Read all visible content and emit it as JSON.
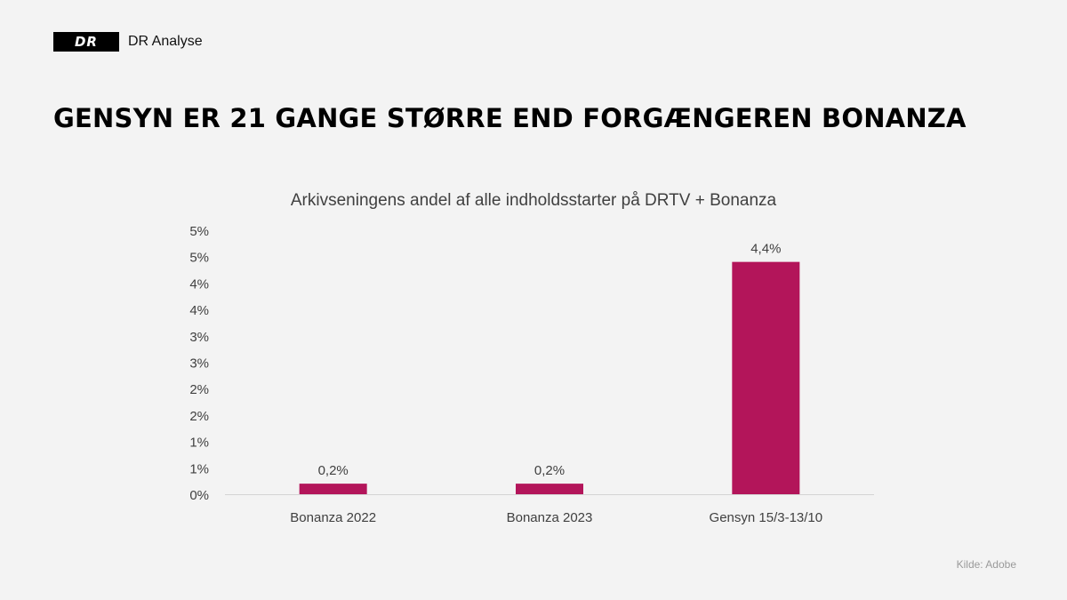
{
  "brand": {
    "logo_text": "DR",
    "name": "DR Analyse"
  },
  "headline": "GENSYN ER 21 GANGE STØRRE END FORGÆNGEREN BONANZA",
  "source": "Kilde: Adobe",
  "colors": {
    "bar": "#b3155a",
    "axis": "#d4d4d4",
    "text": "#404040"
  },
  "chart_data": {
    "type": "bar",
    "title": "Arkivseningens andel af alle indholdsstarter på DRTV + Bonanza",
    "xlabel": "",
    "ylabel": "",
    "categories": [
      "Bonanza 2022",
      "Bonanza 2023",
      "Gensyn 15/3-13/10"
    ],
    "values": [
      0.2,
      0.2,
      4.4
    ],
    "data_labels": [
      "0,2%",
      "0,2%",
      "4,4%"
    ],
    "ylim": [
      0,
      5
    ],
    "y_tick_values": [
      0,
      0.5,
      1,
      1.5,
      2,
      2.5,
      3,
      3.5,
      4,
      4.5,
      5
    ],
    "y_tick_labels": [
      "0%",
      "1%",
      "1%",
      "2%",
      "2%",
      "3%",
      "3%",
      "4%",
      "4%",
      "5%",
      "5%"
    ],
    "grid": false,
    "legend": "none"
  }
}
